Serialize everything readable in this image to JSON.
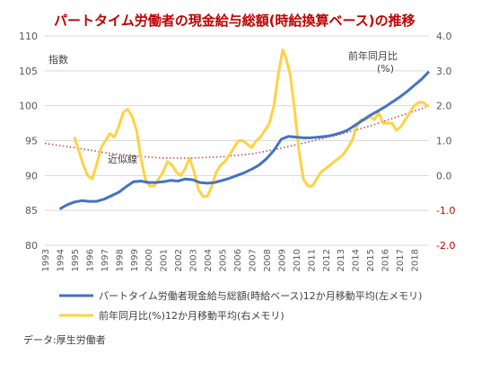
{
  "chart_data": {
    "type": "line",
    "title": "パートタイム労働者の現金給与総額(時給換算ベース)の推移",
    "left_axis_label": "指数",
    "right_axis_label_line1": "前年同月比",
    "right_axis_label_line2": "(%)",
    "trend_label": "近似線",
    "source": "データ:厚生労働者",
    "ylim_left": [
      80,
      110
    ],
    "ylim_right": [
      -2.0,
      4.0
    ],
    "xlim": [
      1993,
      2019
    ],
    "y_left_ticks": [
      "80",
      "85",
      "90",
      "95",
      "100",
      "105",
      "110"
    ],
    "y_right_ticks": [
      "-2.0",
      "-1.0",
      "0.0",
      "1.0",
      "2.0",
      "3.0",
      "4.0"
    ],
    "x_ticks": [
      "1993",
      "1994",
      "1995",
      "1996",
      "1997",
      "1998",
      "1999",
      "2000",
      "2001",
      "2002",
      "2003",
      "2004",
      "2005",
      "2006",
      "2007",
      "2008",
      "2009",
      "2010",
      "2011",
      "2012",
      "2013",
      "2014",
      "2015",
      "2016",
      "2017",
      "2018"
    ],
    "grid": true,
    "colors": {
      "index": "#4472c4",
      "yoy": "#ffd242",
      "trend": "#c0504d",
      "title": "#c00000"
    },
    "series": [
      {
        "name": "パートタイム労働者現金給与総額(時給ベース)12か月移動平均(左メモリ)",
        "axis": "left",
        "x": [
          1994.0,
          1994.5,
          1995.0,
          1995.5,
          1996.0,
          1996.5,
          1997.0,
          1997.5,
          1998.0,
          1998.5,
          1999.0,
          1999.5,
          2000.0,
          2000.5,
          2001.0,
          2001.5,
          2002.0,
          2002.5,
          2003.0,
          2003.5,
          2004.0,
          2004.5,
          2005.0,
          2005.5,
          2006.0,
          2006.5,
          2007.0,
          2007.5,
          2008.0,
          2008.5,
          2009.0,
          2009.5,
          2010.0,
          2010.5,
          2011.0,
          2011.5,
          2012.0,
          2012.5,
          2013.0,
          2013.5,
          2014.0,
          2014.5,
          2015.0,
          2015.5,
          2016.0,
          2016.5,
          2017.0,
          2017.5,
          2018.0,
          2018.5,
          2019.0
        ],
        "values": [
          85.2,
          85.8,
          86.2,
          86.4,
          86.3,
          86.3,
          86.6,
          87.1,
          87.6,
          88.4,
          89.1,
          89.2,
          89.0,
          89.0,
          89.1,
          89.3,
          89.2,
          89.5,
          89.4,
          89.0,
          88.9,
          89.0,
          89.3,
          89.6,
          90.0,
          90.4,
          90.9,
          91.5,
          92.4,
          93.6,
          95.2,
          95.6,
          95.5,
          95.4,
          95.4,
          95.5,
          95.6,
          95.8,
          96.1,
          96.5,
          97.2,
          97.9,
          98.6,
          99.2,
          99.8,
          100.5,
          101.2,
          102.0,
          102.9,
          103.8,
          104.9
        ]
      },
      {
        "name": "前年同月比(%)12か月移動平均(右メモリ)",
        "axis": "right",
        "x": [
          1995.0,
          1995.3,
          1995.6,
          1995.9,
          1996.2,
          1996.5,
          1996.8,
          1997.1,
          1997.4,
          1997.7,
          1998.0,
          1998.3,
          1998.6,
          1998.9,
          1999.2,
          1999.5,
          1999.8,
          2000.1,
          2000.4,
          2000.7,
          2001.0,
          2001.3,
          2001.6,
          2001.9,
          2002.2,
          2002.5,
          2002.8,
          2003.1,
          2003.4,
          2003.7,
          2004.0,
          2004.3,
          2004.6,
          2004.9,
          2005.2,
          2005.5,
          2005.8,
          2006.1,
          2006.4,
          2006.7,
          2007.0,
          2007.3,
          2007.6,
          2007.9,
          2008.2,
          2008.5,
          2008.8,
          2009.1,
          2009.3,
          2009.6,
          2009.9,
          2010.2,
          2010.5,
          2010.8,
          2011.1,
          2011.4,
          2011.7,
          2012.0,
          2012.3,
          2012.6,
          2012.9,
          2013.2,
          2013.5,
          2013.8,
          2014.1,
          2014.4,
          2014.7,
          2015.0,
          2015.3,
          2015.6,
          2015.9,
          2016.2,
          2016.5,
          2016.8,
          2017.1,
          2017.4,
          2017.7,
          2018.0,
          2018.3,
          2018.6,
          2018.9,
          2019.0
        ],
        "values": [
          1.1,
          0.7,
          0.3,
          0.0,
          -0.1,
          0.3,
          0.8,
          1.0,
          1.2,
          1.1,
          1.4,
          1.8,
          1.9,
          1.7,
          1.3,
          0.5,
          -0.1,
          -0.3,
          -0.3,
          -0.1,
          0.1,
          0.4,
          0.3,
          0.1,
          0.0,
          0.2,
          0.5,
          0.1,
          -0.4,
          -0.6,
          -0.6,
          -0.3,
          0.1,
          0.3,
          0.4,
          0.6,
          0.8,
          1.0,
          1.0,
          0.9,
          0.8,
          1.0,
          1.1,
          1.3,
          1.5,
          2.0,
          2.9,
          3.6,
          3.4,
          2.9,
          1.9,
          0.7,
          -0.1,
          -0.3,
          -0.3,
          -0.1,
          0.1,
          0.2,
          0.3,
          0.4,
          0.5,
          0.6,
          0.8,
          1.0,
          1.4,
          1.6,
          1.6,
          1.7,
          1.6,
          1.8,
          1.5,
          1.5,
          1.5,
          1.3,
          1.4,
          1.6,
          1.8,
          2.0,
          2.1,
          2.1,
          2.0,
          2.0
        ]
      },
      {
        "name": "近似線",
        "axis": "left",
        "x": [
          1993.0,
          1995.0,
          1997.0,
          1999.0,
          2001.0,
          2003.0,
          2005.0,
          2007.0,
          2009.0,
          2011.0,
          2013.0,
          2015.0,
          2017.0,
          2018.8
        ],
        "values": [
          94.6,
          94.0,
          93.3,
          92.8,
          92.5,
          92.5,
          92.7,
          93.1,
          93.9,
          94.9,
          95.9,
          97.1,
          98.5,
          99.8
        ]
      }
    ]
  }
}
